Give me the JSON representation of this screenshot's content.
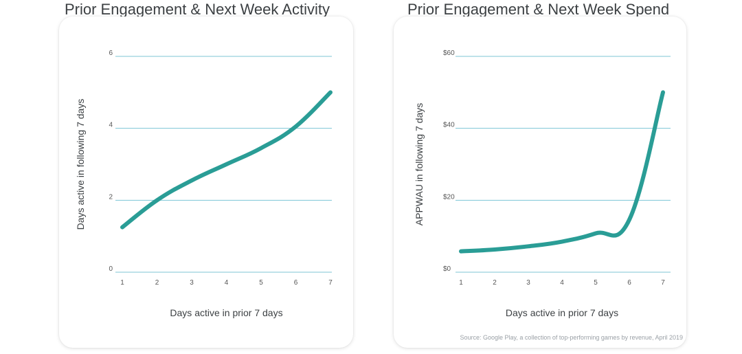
{
  "chart_data": [
    {
      "type": "line",
      "title": "Prior Engagement & Next Week Activity",
      "xlabel": "Days active in prior 7 days",
      "ylabel": "Days active in following 7 days",
      "x": [
        1,
        2,
        3,
        4,
        5,
        6,
        7
      ],
      "xticks": [
        "1",
        "2",
        "3",
        "4",
        "5",
        "6",
        "7"
      ],
      "yticks": [
        "0",
        "2",
        "4",
        "6"
      ],
      "ylim": [
        0,
        6
      ],
      "grid": true,
      "series": [
        {
          "name": "Days active",
          "values": [
            1.25,
            2.0,
            2.55,
            3.0,
            3.45,
            4.05,
            5.0
          ],
          "color": "#2a9d96"
        }
      ]
    },
    {
      "type": "line",
      "title": "Prior Engagement & Next Week Spend",
      "xlabel": "Days active in prior 7 days",
      "ylabel": "APPWAU in following 7 days",
      "x": [
        1,
        2,
        3,
        4,
        5,
        6,
        7
      ],
      "xticks": [
        "1",
        "2",
        "3",
        "4",
        "5",
        "6",
        "7"
      ],
      "yticks": [
        "$0",
        "$20",
        "$40",
        "$60"
      ],
      "ylim": [
        0,
        60
      ],
      "grid": true,
      "series": [
        {
          "name": "APPWAU",
          "values": [
            5.8,
            6.3,
            7.2,
            8.5,
            10.8,
            14.6,
            50
          ],
          "color": "#2a9d96"
        }
      ],
      "source_note": "Source: Google Play, a collection of top-performing games by revenue, April 2019"
    }
  ]
}
